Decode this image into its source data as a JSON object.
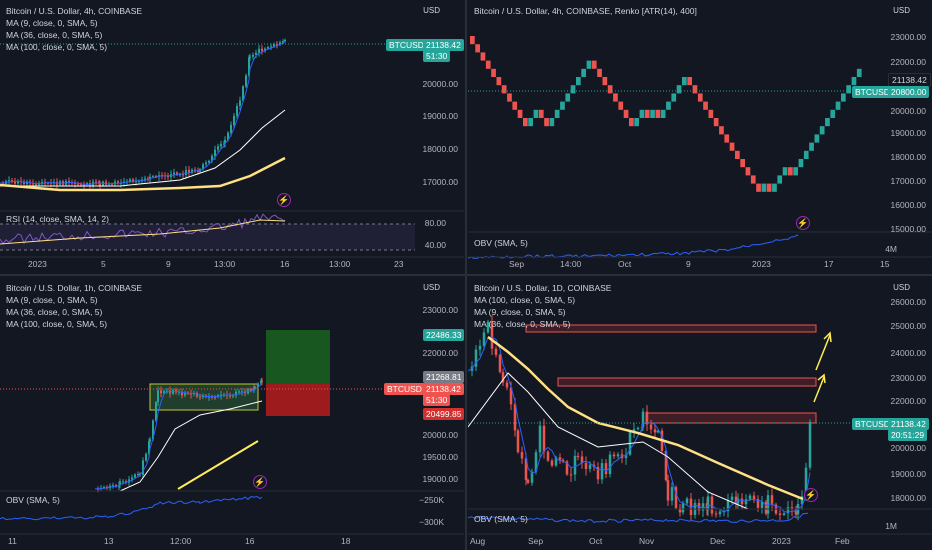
{
  "colors": {
    "up": "#26a69a",
    "down": "#ef5350",
    "ma9": "#2962ff",
    "ma36": "#ffffff",
    "ma100": "#ffe082",
    "obv": "#2962ff",
    "rsi": "#7e57c2",
    "bg": "#131722",
    "long_target": "#1b5e20",
    "long_stop": "#b71c1c",
    "zone_fill": "#f2363633",
    "zone_border": "#ef5350"
  },
  "panel1": {
    "title": "Bitcoin / U.S. Dollar, 4h, COINBASE",
    "ma9": "MA (9, close, 0, SMA, 5)",
    "ma36": "MA (36, close, 0, SMA, 5)",
    "ma100": "MA (100, close, 0, SMA, 5)",
    "currency": "USD",
    "price_tag": "BTCUSD",
    "price": "21138.42",
    "countdown": "51:30",
    "y_labels": [
      "20000.00",
      "19000.00",
      "18000.00",
      "17000.00"
    ],
    "rsi_label": "RSI (14, close, SMA, 14, 2)",
    "rsi_levels": [
      "80.00",
      "40.00"
    ],
    "x_labels": [
      "2023",
      "5",
      "9",
      "13:00",
      "16",
      "13:00",
      "23"
    ]
  },
  "panel2": {
    "title": "Bitcoin / U.S. Dollar, 4h, COINBASE, Renko [ATR(14), 400]",
    "currency": "USD",
    "price_tag": "BTCUSD",
    "price": "21138.42",
    "renko_price": "20800.00",
    "y_labels": [
      "23000.00",
      "22000.00",
      "20000.00",
      "19000.00",
      "18000.00",
      "17000.00",
      "16000.00",
      "15000.00"
    ],
    "obv_label": "OBV (SMA, 5)",
    "obv_levels": [
      "4M"
    ],
    "x_labels": [
      "Sep",
      "14:00",
      "Oct",
      "9",
      "2023",
      "17",
      "15"
    ]
  },
  "panel3": {
    "title": "Bitcoin / U.S. Dollar, 1h, COINBASE",
    "ma9": "MA (9, close, 0, SMA, 5)",
    "ma36": "MA (36, close, 0, SMA, 5)",
    "ma100": "MA (100, close, 0, SMA, 5)",
    "currency": "USD",
    "target_price": "22486.33",
    "top_box_price": "21268.81",
    "price_tag": "BTCUSD",
    "price": "21138.42",
    "countdown": "51:30",
    "stop_price": "20499.85",
    "y_labels": [
      "23000.00",
      "22000.00",
      "20000.00",
      "19500.00",
      "19000.00"
    ],
    "obv_label": "OBV (SMA, 5)",
    "obv_levels": [
      "−250K",
      "−300K"
    ],
    "x_labels": [
      "11",
      "13",
      "12:00",
      "16",
      "18"
    ]
  },
  "panel4": {
    "title": "Bitcoin / U.S. Dollar, 1D, COINBASE",
    "ma100": "MA (100, close, 0, SMA, 5)",
    "ma9": "MA (9, close, 0, SMA, 5)",
    "ma36": "MA (36, close, 0, SMA, 5)",
    "currency": "USD",
    "price_tag": "BTCUSD",
    "price": "21138.42",
    "countdown": "20:51:29",
    "y_labels": [
      "26000.00",
      "25000.00",
      "24000.00",
      "23000.00",
      "22000.00",
      "20000.00",
      "19000.00",
      "18000.00"
    ],
    "obv_label": "OBV (SMA, 5)",
    "obv_levels": [
      "1M"
    ],
    "x_labels": [
      "Aug",
      "Sep",
      "Oct",
      "Nov",
      "Dec",
      "2023",
      "Feb"
    ]
  }
}
